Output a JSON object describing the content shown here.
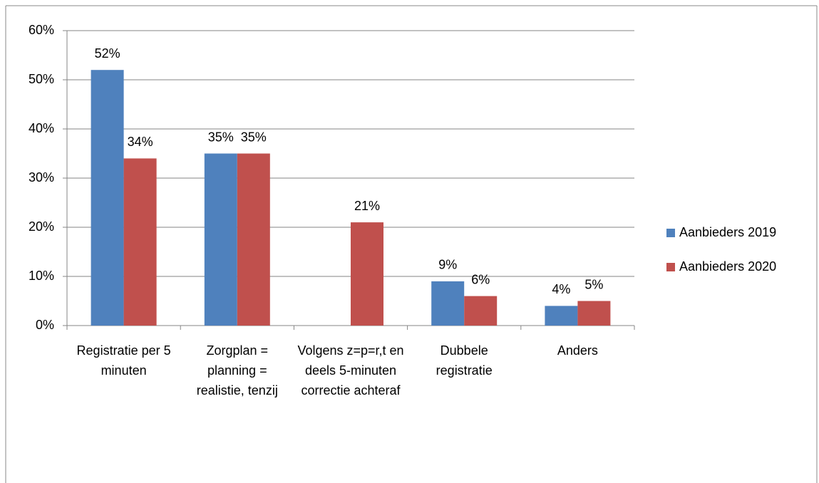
{
  "chart_data": {
    "type": "bar",
    "categories": [
      "Registratie per 5 minuten",
      "Zorgplan = planning = realistie, tenzij",
      "Volgens z=p=r,t en deels 5-minuten correctie achteraf",
      "Dubbele registratie",
      "Anders"
    ],
    "series": [
      {
        "name": "Aanbieders 2019",
        "color": "#4f81bd",
        "values": [
          52,
          35,
          null,
          9,
          4
        ],
        "value_labels": [
          "52%",
          "35%",
          null,
          "9%",
          "4%"
        ]
      },
      {
        "name": "Aanbieders 2020",
        "color": "#c0504d",
        "values": [
          34,
          35,
          21,
          6,
          5
        ],
        "value_labels": [
          "34%",
          "35%",
          "21%",
          "6%",
          "5%"
        ]
      }
    ],
    "ylim": [
      0,
      60
    ],
    "yticks": [
      {
        "value": 0,
        "label": "0%"
      },
      {
        "value": 10,
        "label": "10%"
      },
      {
        "value": 20,
        "label": "20%"
      },
      {
        "value": 30,
        "label": "30%"
      },
      {
        "value": 40,
        "label": "40%"
      },
      {
        "value": 50,
        "label": "50%"
      },
      {
        "value": 60,
        "label": "60%"
      }
    ],
    "grid": true,
    "legend": "right"
  }
}
